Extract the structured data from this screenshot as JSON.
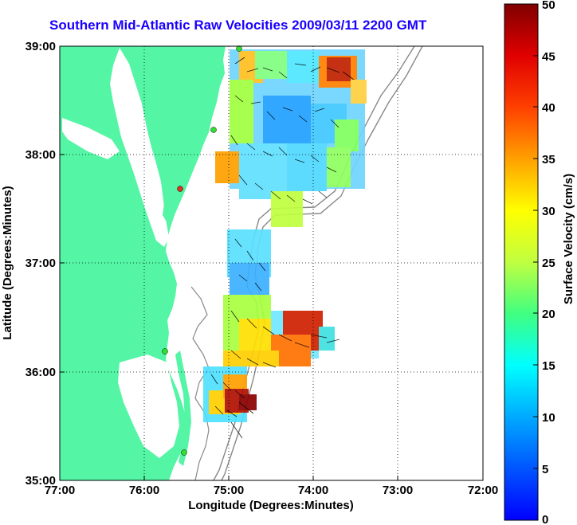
{
  "title": "Southern Mid-Atlantic Raw Velocities 2009/03/11 2200 GMT",
  "colors": {
    "land": "#55f5a6",
    "ocean": "#ffffff",
    "station_green": "#30e030",
    "station_red": "#e03020",
    "title": "#1a00ff"
  },
  "chart_data": {
    "type": "map",
    "xlabel": "Longitude (Degrees:Minutes)",
    "ylabel": "Latitude (Degrees:Minutes)",
    "x_ticks": [
      "77:00",
      "76:00",
      "75:00",
      "74:00",
      "73:00",
      "72:00"
    ],
    "y_ticks": [
      "39:00",
      "38:00",
      "37:00",
      "36:00",
      "35:00"
    ],
    "x_range": [
      -77,
      -72
    ],
    "y_range": [
      35,
      39
    ],
    "grid": true,
    "colorbar": {
      "label": "Surface Velocity (cm/s)",
      "ticks": [
        "50",
        "45",
        "40",
        "35",
        "30",
        "25",
        "20",
        "15",
        "10",
        "5",
        "0"
      ],
      "range": [
        0,
        50
      ]
    }
  }
}
